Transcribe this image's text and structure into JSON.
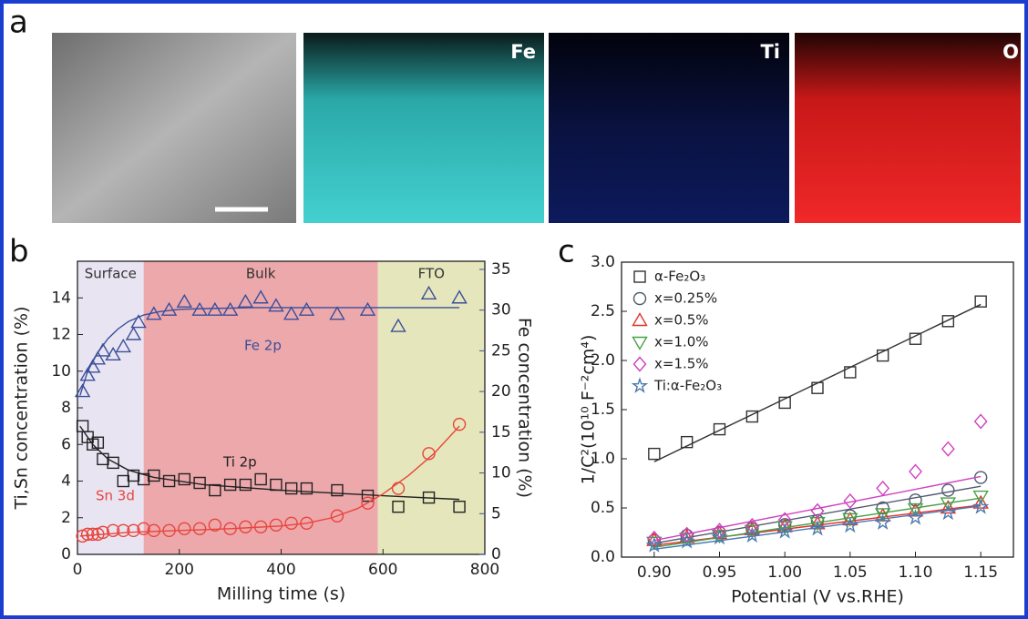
{
  "figure": {
    "panels": [
      "a",
      "b",
      "c"
    ],
    "image_labels": [
      "Fe",
      "Ti",
      "O"
    ]
  },
  "chart_data": [
    {
      "type": "scatter",
      "xlabel": "Milling time (s)",
      "ylabel": "Ti,Sn concentration (%)",
      "y2label": "Fe concentration (%)",
      "xlim": [
        0,
        800
      ],
      "xticks": [
        0,
        200,
        400,
        600,
        800
      ],
      "ylim": [
        0,
        16
      ],
      "yticks": [
        0,
        2,
        4,
        6,
        8,
        10,
        12,
        14
      ],
      "y2lim": [
        0,
        36
      ],
      "y2ticks": [
        0,
        5,
        10,
        15,
        20,
        25,
        30,
        35
      ],
      "y2color": "#3a4f9a",
      "regions": [
        {
          "label": "Surface",
          "start": 0,
          "end": 130,
          "color": "#e9e4f2"
        },
        {
          "label": "Bulk",
          "start": 130,
          "end": 590,
          "color": "#eda8ac"
        },
        {
          "label": "FTO",
          "start": 590,
          "end": 800,
          "color": "#e6e6bc"
        }
      ],
      "series": [
        {
          "name": "Fe 2p",
          "color": "#3a4f9a",
          "marker": "triangle",
          "axis": "y2",
          "x": [
            10,
            20,
            30,
            40,
            50,
            70,
            90,
            110,
            120,
            150,
            180,
            210,
            240,
            270,
            300,
            330,
            360,
            390,
            420,
            450,
            510,
            570,
            630,
            690,
            750
          ],
          "values": [
            20,
            22,
            23,
            24,
            25,
            24.5,
            25.5,
            27,
            28.5,
            29.5,
            30,
            31,
            30,
            30,
            30,
            31,
            31.5,
            30.5,
            29.5,
            30,
            29.5,
            30,
            28,
            32,
            31.5
          ],
          "fit": {
            "x": [
              5,
              20,
              40,
              60,
              80,
              100,
              130,
              160,
              200,
              260,
              350,
              500,
              750
            ],
            "values": [
              19.5,
              22.5,
              24.8,
              26.5,
              27.7,
              28.6,
              29.4,
              29.8,
              30.1,
              30.2,
              30.3,
              30.3,
              30.3
            ]
          }
        },
        {
          "name": "Ti 2p",
          "color": "#222222",
          "marker": "square",
          "x": [
            10,
            20,
            30,
            40,
            50,
            70,
            90,
            110,
            130,
            150,
            180,
            210,
            240,
            270,
            300,
            330,
            360,
            390,
            420,
            450,
            510,
            570,
            630,
            690,
            750
          ],
          "values": [
            7,
            6.4,
            6,
            6.1,
            5.2,
            5,
            4,
            4.3,
            4.1,
            4.3,
            4,
            4.1,
            3.9,
            3.5,
            3.8,
            3.8,
            4.1,
            3.8,
            3.6,
            3.6,
            3.5,
            3.2,
            2.6,
            3.1,
            2.6
          ],
          "fit": {
            "x": [
              5,
              30,
              60,
              100,
              150,
              250,
              400,
              600,
              750
            ],
            "values": [
              7,
              6,
              5.2,
              4.6,
              4.2,
              3.8,
              3.5,
              3.2,
              3
            ]
          }
        },
        {
          "name": "Sn 3d",
          "color": "#e8453c",
          "marker": "circle",
          "x": [
            10,
            20,
            30,
            40,
            50,
            70,
            90,
            110,
            130,
            150,
            180,
            210,
            240,
            270,
            300,
            330,
            360,
            390,
            420,
            450,
            510,
            570,
            630,
            690,
            750
          ],
          "values": [
            1,
            1.1,
            1.1,
            1.1,
            1.2,
            1.3,
            1.3,
            1.3,
            1.4,
            1.3,
            1.3,
            1.4,
            1.4,
            1.6,
            1.4,
            1.5,
            1.5,
            1.6,
            1.7,
            1.7,
            2.1,
            2.8,
            3.6,
            5.5,
            7.1
          ],
          "fit": {
            "x": [
              5,
              100,
              200,
              300,
              400,
              450,
              500,
              550,
              600,
              650,
              700,
              750
            ],
            "values": [
              1,
              1.2,
              1.3,
              1.4,
              1.55,
              1.7,
              2,
              2.5,
              3.3,
              4.3,
              5.5,
              7
            ]
          }
        }
      ]
    },
    {
      "type": "scatter",
      "xlabel": "Potential (V vs.RHE)",
      "ylabel": "1/C²(10¹⁰ F⁻²cm⁴)",
      "xlim": [
        0.875,
        1.175
      ],
      "xticks": [
        {
          "value": 0.9,
          "label": "0.90"
        },
        0.95,
        {
          "value": 1,
          "label": "1.00"
        },
        1.05,
        {
          "value": 1.1,
          "label": "1.10"
        },
        1.15
      ],
      "ylim": [
        0,
        3
      ],
      "yticks": [
        {
          "value": 0,
          "label": "0.0"
        },
        0.5,
        {
          "value": 1,
          "label": "1.0"
        },
        1.5,
        {
          "value": 2,
          "label": "2.0"
        },
        2.5,
        {
          "value": 3,
          "label": "3.0"
        }
      ],
      "legend": "upper left",
      "x": [
        0.9,
        0.925,
        0.95,
        0.975,
        1,
        1.025,
        1.05,
        1.075,
        1.1,
        1.125,
        1.15
      ],
      "series": [
        {
          "name": "α-Fe₂O₃",
          "color": "#333333",
          "marker": "square",
          "values": [
            1.05,
            1.17,
            1.3,
            1.43,
            1.57,
            1.72,
            1.88,
            2.05,
            2.22,
            2.4,
            2.6
          ],
          "fit": {
            "x": [
              0.9,
              1.15
            ],
            "values": [
              0.97,
              2.57
            ]
          }
        },
        {
          "name": "x=0.25%",
          "color": "#505a70",
          "marker": "circle",
          "values": [
            0.17,
            0.22,
            0.25,
            0.29,
            0.33,
            0.37,
            0.42,
            0.5,
            0.58,
            0.68,
            0.81
          ],
          "fit": {
            "x": [
              0.9,
              1.15
            ],
            "values": [
              0.14,
              0.72
            ]
          }
        },
        {
          "name": "x=0.5%",
          "color": "#e8302a",
          "marker": "triangle",
          "values": [
            0.17,
            0.2,
            0.24,
            0.28,
            0.31,
            0.34,
            0.38,
            0.42,
            0.47,
            0.5,
            0.55
          ],
          "fit": {
            "x": [
              0.9,
              1.15
            ],
            "values": [
              0.12,
              0.53
            ]
          }
        },
        {
          "name": "x=1.0%",
          "color": "#4aa04a",
          "marker": "triangle-down",
          "values": [
            0.15,
            0.19,
            0.22,
            0.27,
            0.31,
            0.35,
            0.39,
            0.44,
            0.49,
            0.55,
            0.62
          ],
          "fit": {
            "x": [
              0.9,
              1.15
            ],
            "values": [
              0.1,
              0.6
            ]
          }
        },
        {
          "name": "x=1.5%",
          "color": "#d040c0",
          "marker": "diamond",
          "values": [
            0.19,
            0.23,
            0.27,
            0.32,
            0.38,
            0.47,
            0.57,
            0.7,
            0.87,
            1.1,
            1.38
          ],
          "fit": {
            "x": [
              0.9,
              1.15
            ],
            "values": [
              0.17,
              0.82
            ]
          }
        },
        {
          "name": "Ti:α-Fe₂O₃",
          "color": "#4a7ab0",
          "marker": "star",
          "values": [
            0.12,
            0.16,
            0.2,
            0.22,
            0.26,
            0.29,
            0.32,
            0.35,
            0.4,
            0.45,
            0.51
          ],
          "fit": {
            "x": [
              0.9,
              1.15
            ],
            "values": [
              0.08,
              0.52
            ]
          }
        }
      ]
    }
  ]
}
